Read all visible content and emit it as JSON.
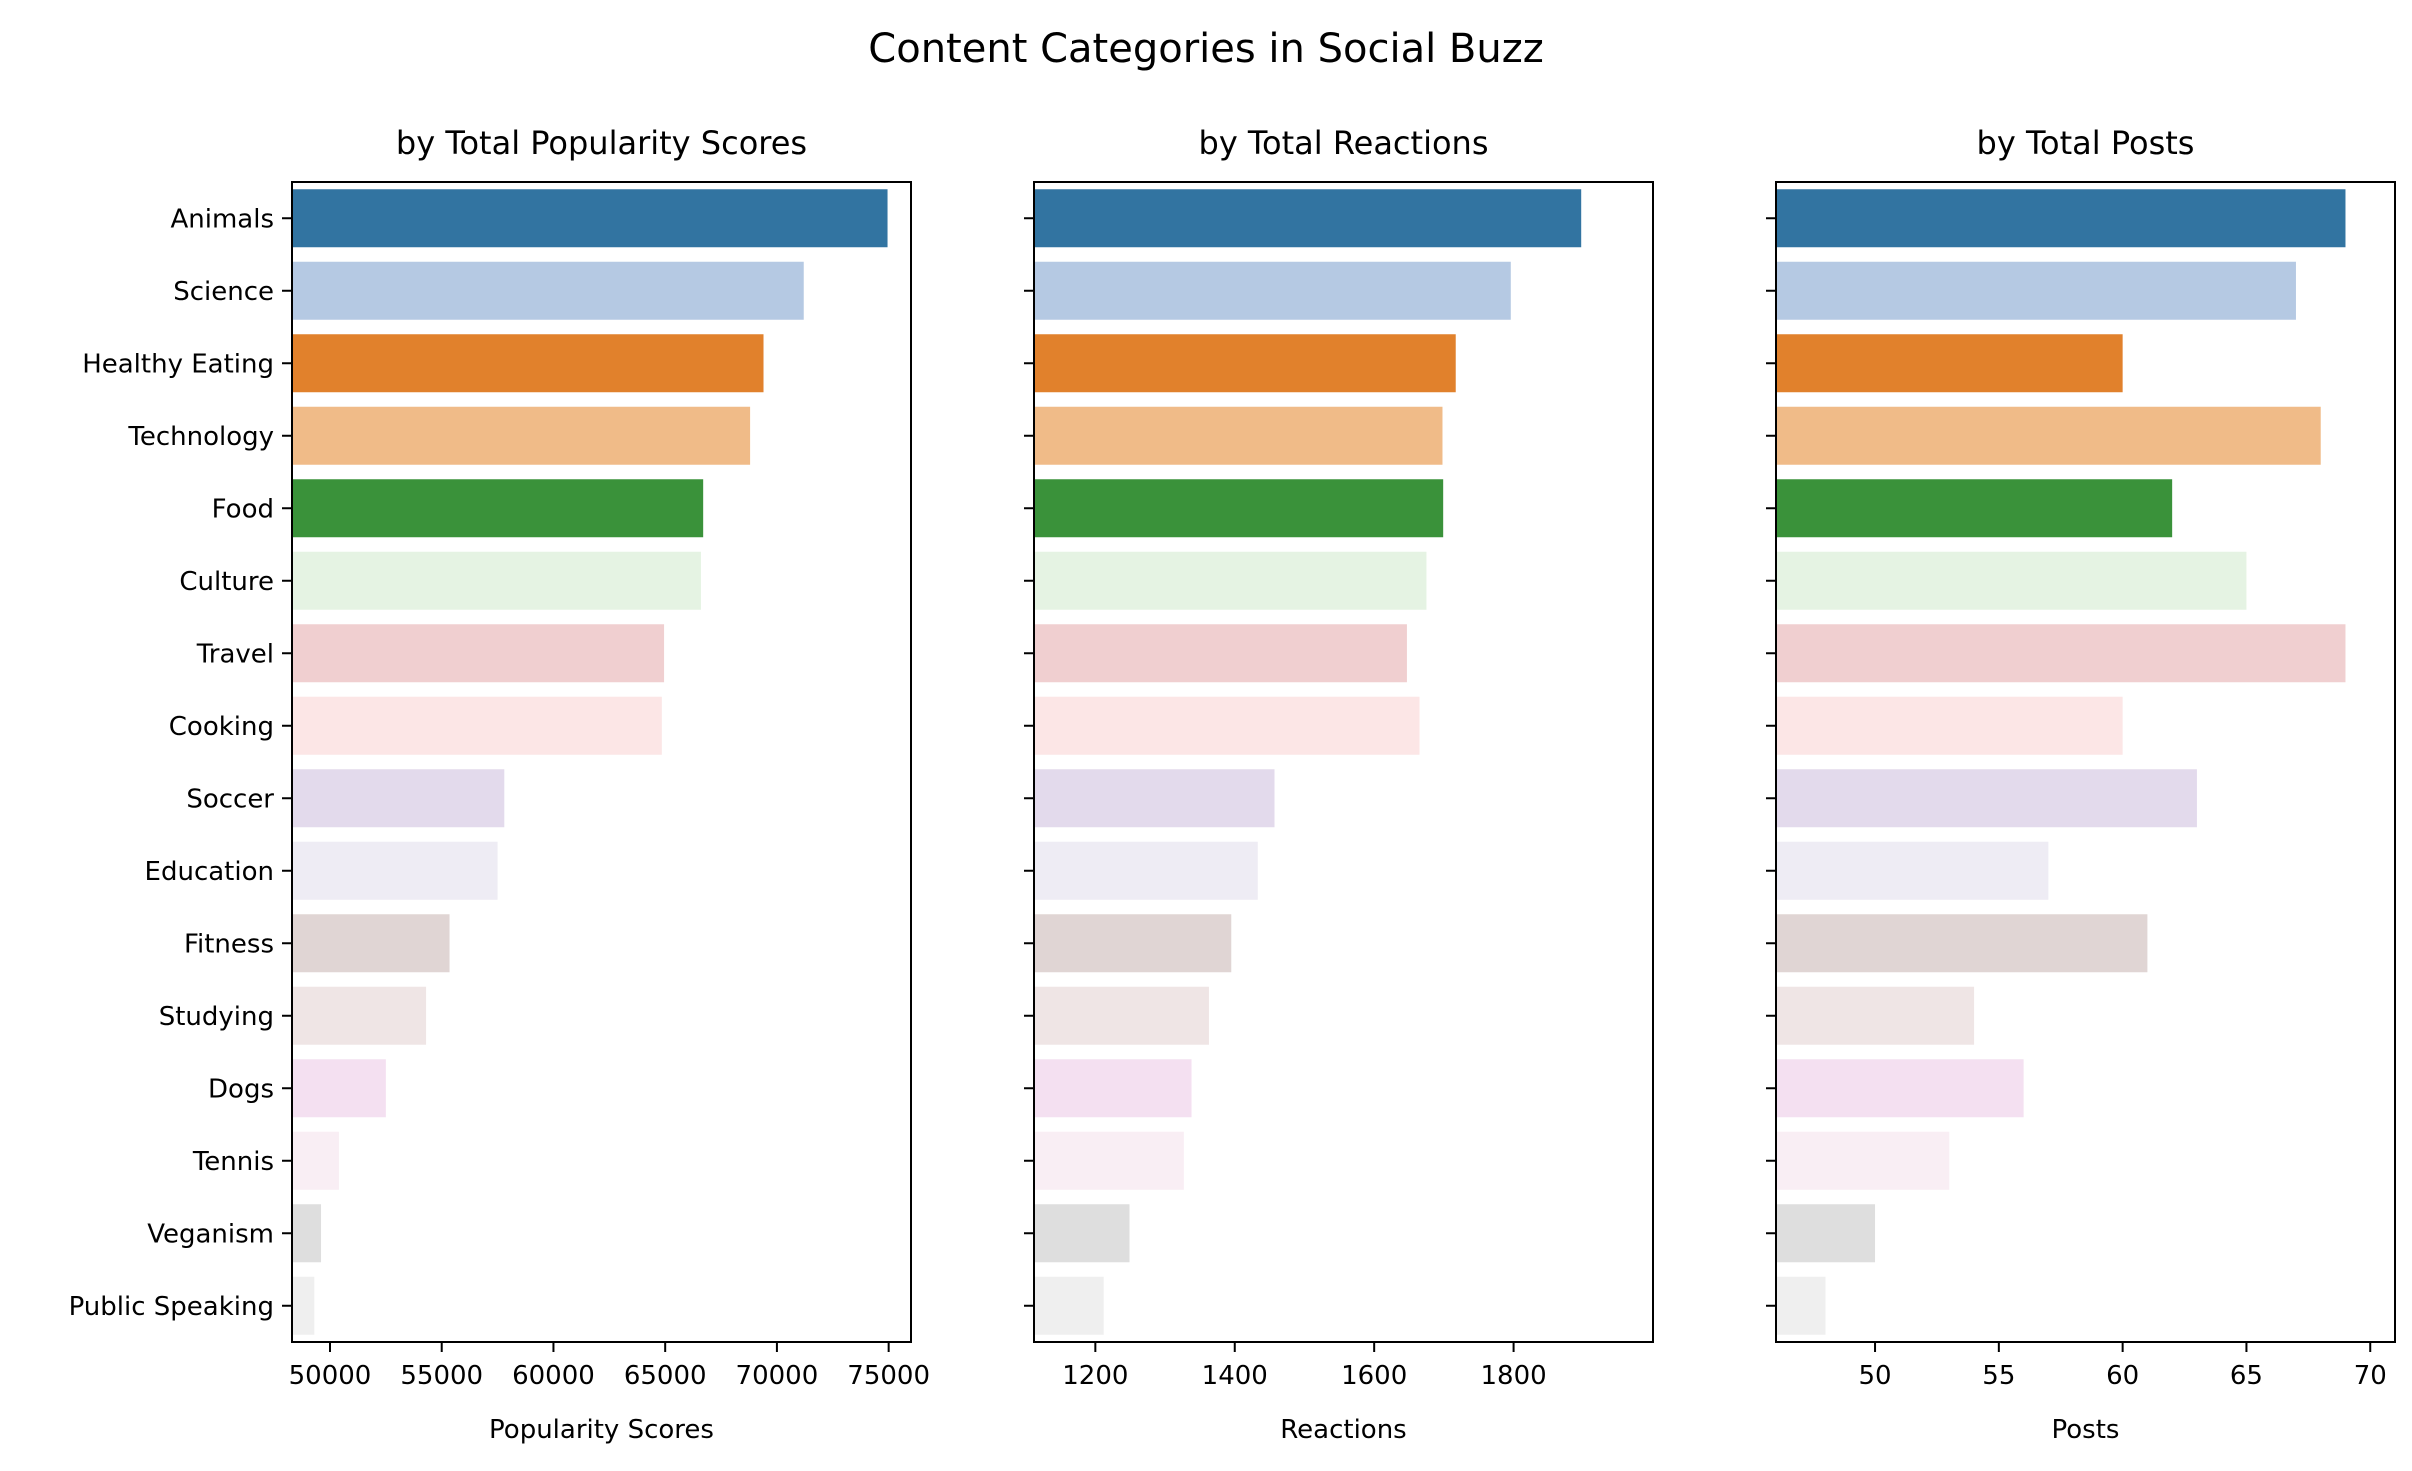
{
  "chart_data": {
    "type": "bar",
    "orientation": "horizontal",
    "title": "Content Categories in Social Buzz",
    "categories": [
      "Animals",
      "Science",
      "Healthy Eating",
      "Technology",
      "Food",
      "Culture",
      "Travel",
      "Cooking",
      "Soccer",
      "Education",
      "Fitness",
      "Studying",
      "Dogs",
      "Tennis",
      "Veganism",
      "Public Speaking"
    ],
    "colors": [
      "#3274a1",
      "#b5c9e3",
      "#e1812c",
      "#f0bb88",
      "#3a923a",
      "#e5f3e3",
      "#f0cfd0",
      "#fce6e6",
      "#e3daec",
      "#eeecf4",
      "#e0d5d4",
      "#efe5e5",
      "#f4e0f1",
      "#f9eef4",
      "#dedede",
      "#efefef"
    ],
    "panels": [
      {
        "title": "by Total Popularity Scores",
        "xlabel": "Popularity Scores",
        "xlim": [
          48300,
          76000
        ],
        "ticks": [
          50000,
          55000,
          60000,
          65000,
          70000,
          75000
        ],
        "tick_labels": [
          "50000",
          "55000",
          "60000",
          "65000",
          "70000",
          "75000"
        ],
        "values": [
          74950,
          71200,
          69400,
          68800,
          66700,
          66600,
          64950,
          64850,
          57800,
          57500,
          55350,
          54300,
          52500,
          50400,
          49600,
          49300
        ]
      },
      {
        "title": "by Total Reactions",
        "xlabel": "Reactions",
        "xlim": [
          1112,
          2000
        ],
        "ticks": [
          1200,
          1400,
          1600,
          1800
        ],
        "tick_labels": [
          "1200",
          "1400",
          "1600",
          "1800"
        ],
        "values": [
          1897,
          1796,
          1717,
          1698,
          1699,
          1675,
          1647,
          1665,
          1457,
          1433,
          1395,
          1363,
          1338,
          1327,
          1249,
          1212
        ]
      },
      {
        "title": "by Total Posts",
        "xlabel": "Posts",
        "xlim": [
          46,
          71
        ],
        "ticks": [
          50,
          55,
          60,
          65,
          70
        ],
        "tick_labels": [
          "50",
          "55",
          "60",
          "65",
          "70"
        ],
        "values": [
          69,
          67,
          60,
          68,
          62,
          65,
          69,
          60,
          63,
          57,
          61,
          54,
          56,
          53,
          50,
          48
        ]
      }
    ]
  }
}
